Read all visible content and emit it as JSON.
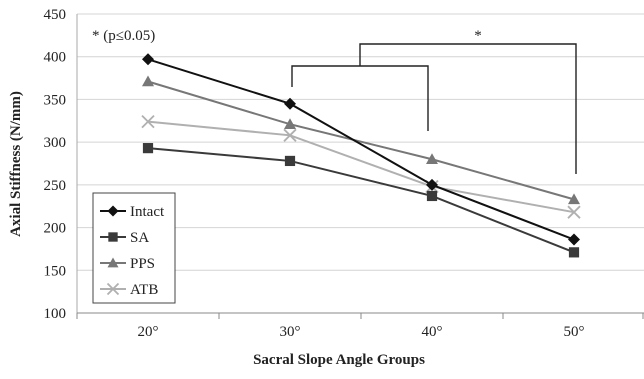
{
  "chart_data": {
    "type": "line",
    "title": "",
    "xlabel": "Sacral Slope Angle Groups",
    "ylabel": "Axial Stiffness (N/mm)",
    "categories": [
      "20°",
      "30°",
      "40°",
      "50°"
    ],
    "ylim": [
      100,
      450
    ],
    "yticks": [
      "100",
      "150",
      "200",
      "250",
      "300",
      "350",
      "400",
      "450"
    ],
    "grid": "horizontal",
    "legend_position": "bottom-left",
    "series": [
      {
        "name": "Intact",
        "values": [
          397,
          345,
          250,
          186
        ],
        "color": "#111111",
        "marker": "diamond"
      },
      {
        "name": "SA",
        "values": [
          293,
          278,
          237,
          171
        ],
        "color": "#3a3a3a",
        "marker": "square"
      },
      {
        "name": "PPS",
        "values": [
          371,
          321,
          280,
          233
        ],
        "color": "#777777",
        "marker": "triangle"
      },
      {
        "name": "ATB",
        "values": [
          324,
          308,
          248,
          218
        ],
        "color": "#b0b0b0",
        "marker": "x"
      }
    ],
    "annotations": {
      "significance_note": "* (p≤0.05)",
      "bracket_star": "*"
    }
  }
}
